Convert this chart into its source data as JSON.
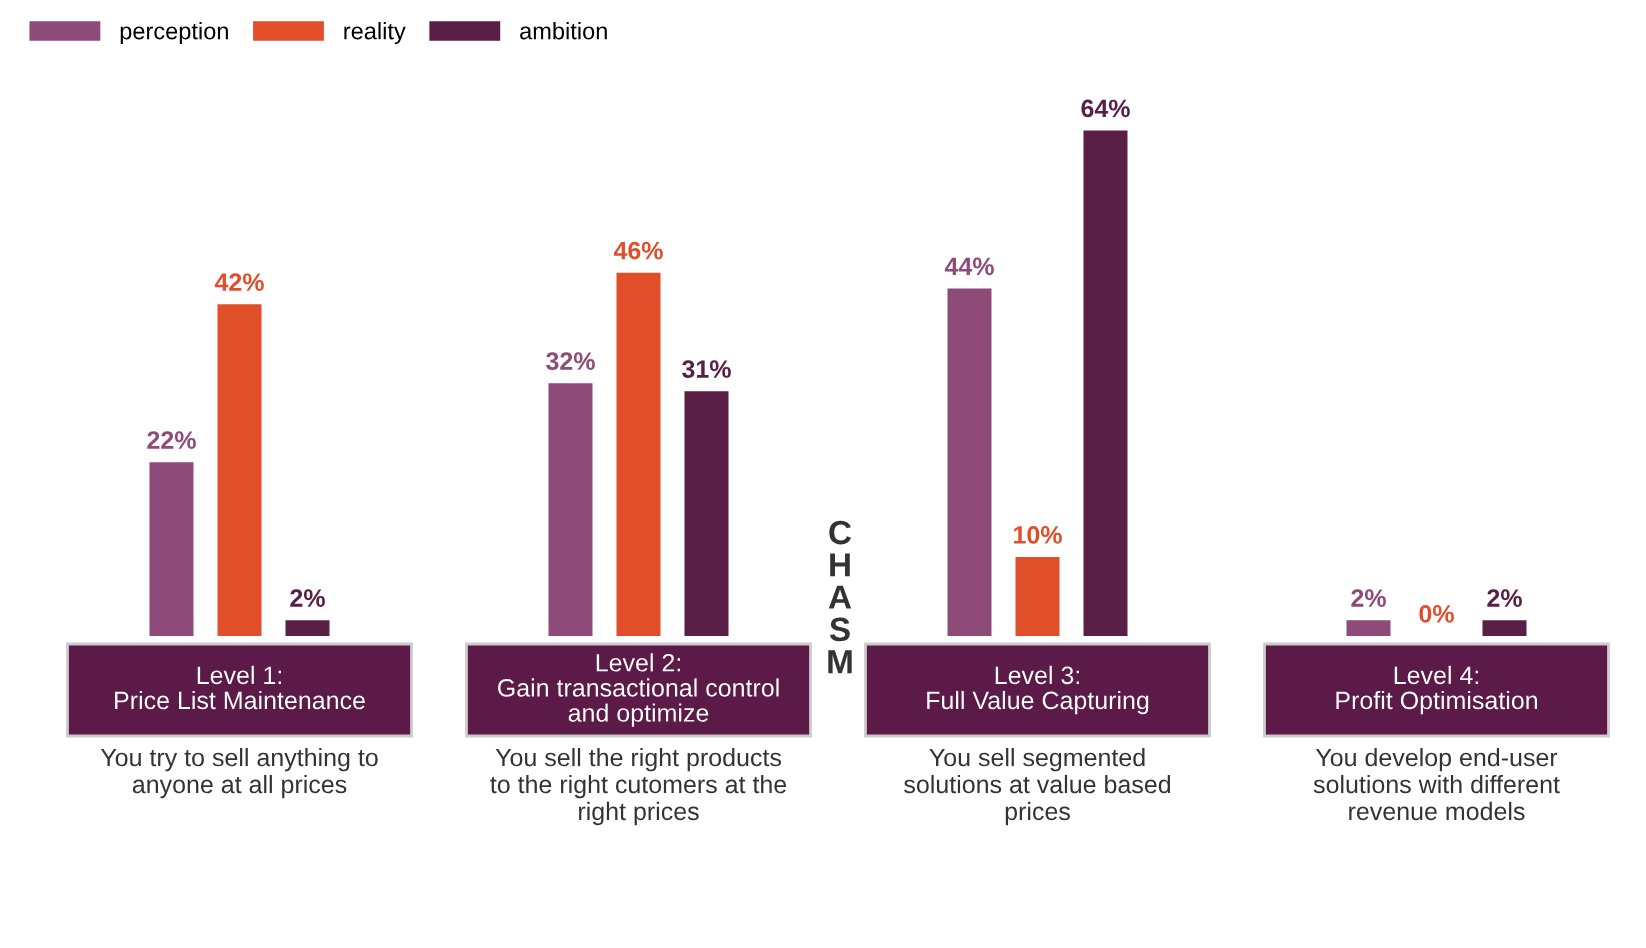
{
  "chart_data": {
    "type": "bar",
    "categories": [
      "Level 1:\nPrice List Maintenance",
      "Level 2:\nGain transactional control\nand optimize",
      "Level 3:\nFull Value Capturing",
      "Level 4:\nProfit Optimisation"
    ],
    "legend": "top left",
    "series": [
      {
        "name": "perception",
        "color": "#8e4a78",
        "values": [
          22,
          32,
          44,
          2
        ],
        "value_labels": [
          "22%",
          "32%",
          "44%",
          "2%"
        ]
      },
      {
        "name": "reality",
        "color": "#e04e2a",
        "values": [
          42,
          46,
          10,
          0
        ],
        "value_labels": [
          "42%",
          "46%",
          "10%",
          "0%"
        ]
      },
      {
        "name": "ambition",
        "color": "#5a1f45",
        "values": [
          2,
          31,
          64,
          2
        ],
        "value_labels": [
          "2%",
          "31%",
          "64%",
          "2%"
        ]
      }
    ],
    "annotations": [
      "You try to sell anything to\nanyone at all prices",
      "You sell the right products\nto the right cutomers at the\nright prices",
      "You sell segmented\nsolutions at value based\nprices",
      "You develop end-user\nsolutions with different\nrevenue models",
      "CHASM"
    ]
  }
}
